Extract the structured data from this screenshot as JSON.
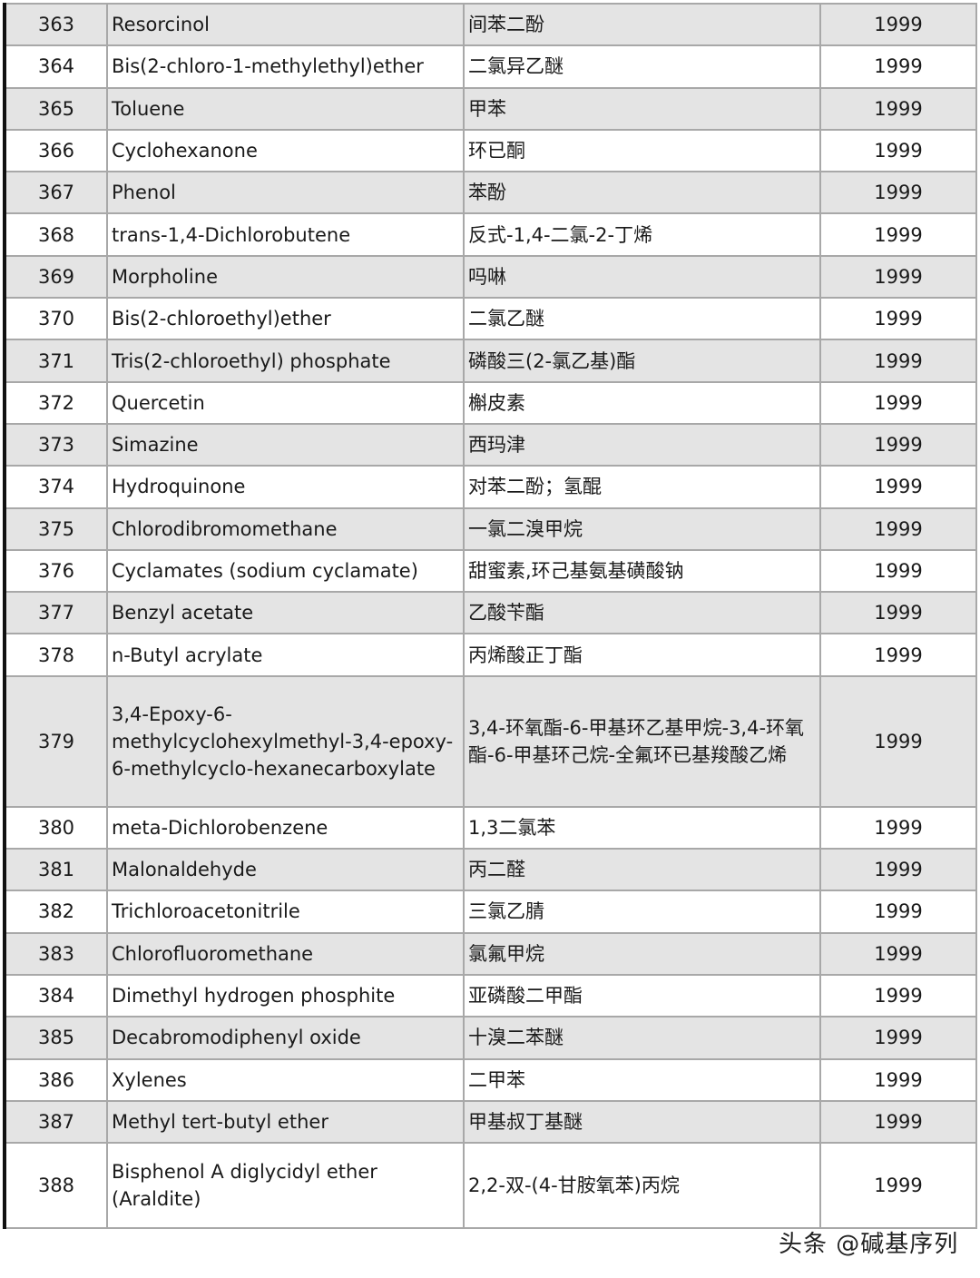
{
  "rows": [
    {
      "no": "363",
      "en": "Resorcinol",
      "zh": "间苯二酚",
      "year": "1999"
    },
    {
      "no": "364",
      "en": "Bis(2-chloro-1-methylethyl)ether",
      "zh": "二氯异乙醚",
      "year": "1999"
    },
    {
      "no": "365",
      "en": "Toluene",
      "zh": "甲苯",
      "year": "1999"
    },
    {
      "no": "366",
      "en": "Cyclohexanone",
      "zh": "环已酮",
      "year": "1999"
    },
    {
      "no": "367",
      "en": "Phenol",
      "zh": "苯酚",
      "year": "1999"
    },
    {
      "no": "368",
      "en": "trans-1,4-Dichlorobutene",
      "zh": "反式-1,4-二氯-2-丁烯",
      "year": "1999"
    },
    {
      "no": "369",
      "en": "Morpholine",
      "zh": "吗啉",
      "year": "1999"
    },
    {
      "no": "370",
      "en": "Bis(2-chloroethyl)ether",
      "zh": "二氯乙醚",
      "year": "1999"
    },
    {
      "no": "371",
      "en": "Tris(2-chloroethyl) phosphate",
      "zh": "磷酸三(2-氯乙基)酯",
      "year": "1999"
    },
    {
      "no": "372",
      "en": "Quercetin",
      "zh": "槲皮素",
      "year": "1999"
    },
    {
      "no": "373",
      "en": "Simazine",
      "zh": "西玛津",
      "year": "1999"
    },
    {
      "no": "374",
      "en": "Hydroquinone",
      "zh": "对苯二酚；氢醌",
      "year": "1999"
    },
    {
      "no": "375",
      "en": "Chlorodibromomethane",
      "zh": "一氯二溴甲烷",
      "year": "1999"
    },
    {
      "no": "376",
      "en": "Cyclamates (sodium cyclamate)",
      "zh": "甜蜜素,环己基氨基磺酸钠",
      "year": "1999"
    },
    {
      "no": "377",
      "en": "Benzyl acetate",
      "zh": "乙酸苄酯",
      "year": "1999"
    },
    {
      "no": "378",
      "en": "n-Butyl acrylate",
      "zh": "丙烯酸正丁酯",
      "year": "1999"
    },
    {
      "no": "379",
      "en": "3,4-Epoxy-6-methylcyclohexylmethyl-3,4-epoxy-6-methylcyclo-hexanecarboxylate",
      "zh": "3,4-环氧酯-6-甲基环乙基甲烷-3,4-环氧酯-6-甲基环己烷-全氟环已基羧酸乙烯",
      "year": "1999"
    },
    {
      "no": "380",
      "en": "meta-Dichlorobenzene",
      "zh": "1,3二氯苯",
      "year": "1999"
    },
    {
      "no": "381",
      "en": "Malonaldehyde",
      "zh": "丙二醛",
      "year": "1999"
    },
    {
      "no": "382",
      "en": "Trichloroacetonitrile",
      "zh": "三氯乙腈",
      "year": "1999"
    },
    {
      "no": "383",
      "en": "Chlorofluoromethane",
      "zh": "氯氟甲烷",
      "year": "1999"
    },
    {
      "no": "384",
      "en": "Dimethyl hydrogen phosphite",
      "zh": "亚磷酸二甲酯",
      "year": "1999"
    },
    {
      "no": "385",
      "en": "Decabromodiphenyl oxide",
      "zh": "十溴二苯醚",
      "year": "1999"
    },
    {
      "no": "386",
      "en": "Xylenes",
      "zh": "二甲苯",
      "year": "1999"
    },
    {
      "no": "387",
      "en": "Methyl tert-butyl ether",
      "zh": "甲基叔丁基醚",
      "year": "1999"
    },
    {
      "no": "388",
      "en": "Bisphenol A diglycidyl ether (Araldite)",
      "zh": "2,2-双-(4-甘胺氧苯)丙烷",
      "year": "1999"
    }
  ],
  "watermark": "头条 @碱基序列",
  "colors": {
    "stripe": "#e4e4e4",
    "border": "#a8a8a8"
  }
}
